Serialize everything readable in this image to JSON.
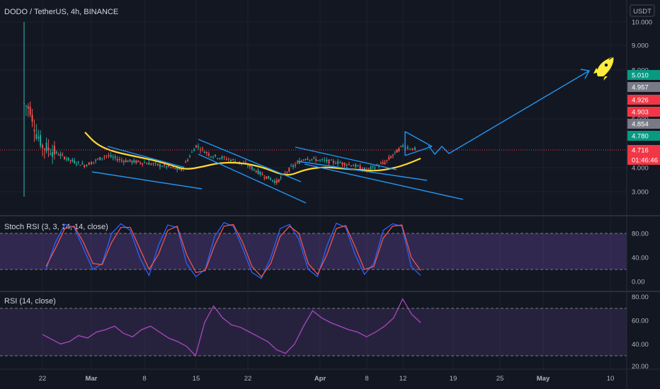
{
  "symbol": {
    "title": "DODO / TetherUS, 4h, BINANCE",
    "currency": "USDT"
  },
  "chart_data": [
    {
      "type": "candlestick",
      "panel": "price",
      "title": "DODO / TetherUS, 4h, BINANCE",
      "y_ticks": [
        "10.000",
        "9.000",
        "8.000",
        "6.000",
        "4.000",
        "3.000"
      ],
      "x_ticks": [
        "22",
        "Mar",
        "8",
        "15",
        "22",
        "Apr",
        "8",
        "12",
        "19",
        "25",
        "May",
        "10"
      ],
      "grid": true,
      "approx_close_series": [
        {
          "date": "Feb 19",
          "close": 6.6
        },
        {
          "date": "Feb 20",
          "close": 6.4
        },
        {
          "date": "Feb 21",
          "close": 5.4
        },
        {
          "date": "Feb 22",
          "close": 4.9
        },
        {
          "date": "Feb 24",
          "close": 4.6
        },
        {
          "date": "Feb 26",
          "close": 4.3
        },
        {
          "date": "Feb 28",
          "close": 4.1
        },
        {
          "date": "Mar 1",
          "close": 4.2
        },
        {
          "date": "Mar 3",
          "close": 4.5
        },
        {
          "date": "Mar 5",
          "close": 4.3
        },
        {
          "date": "Mar 8",
          "close": 4.2
        },
        {
          "date": "Mar 11",
          "close": 4.05
        },
        {
          "date": "Mar 13",
          "close": 3.9
        },
        {
          "date": "Mar 15",
          "close": 4.9
        },
        {
          "date": "Mar 17",
          "close": 4.5
        },
        {
          "date": "Mar 20",
          "close": 4.3
        },
        {
          "date": "Mar 22",
          "close": 4.1
        },
        {
          "date": "Mar 24",
          "close": 3.7
        },
        {
          "date": "Mar 26",
          "close": 3.4
        },
        {
          "date": "Mar 28",
          "close": 4.0
        },
        {
          "date": "Mar 30",
          "close": 4.4
        },
        {
          "date": "Apr 1",
          "close": 4.3
        },
        {
          "date": "Apr 4",
          "close": 4.2
        },
        {
          "date": "Apr 6",
          "close": 4.1
        },
        {
          "date": "Apr 8",
          "close": 3.9
        },
        {
          "date": "Apr 10",
          "close": 4.2
        },
        {
          "date": "Apr 12",
          "close": 4.9
        },
        {
          "date": "Apr 13",
          "close": 4.8
        },
        {
          "date": "Apr 14",
          "close": 4.72
        }
      ],
      "price_tags": [
        {
          "value": "5.010",
          "color": "#089981"
        },
        {
          "value": "4.957",
          "color": "#787b86"
        },
        {
          "value": "4.926",
          "color": "#f23645"
        },
        {
          "value": "4.903",
          "color": "#f23645"
        },
        {
          "value": "4.854",
          "color": "#787b86"
        },
        {
          "value": "4.780",
          "color": "#089981"
        },
        {
          "value": "4.716",
          "color": "#f23645"
        },
        {
          "value": "01:46:46",
          "color": "#f23645"
        }
      ],
      "colors": {
        "up": "#26a69a",
        "down": "#ef5350",
        "moving_average": "#fdd835",
        "drawings": "#2196f3",
        "last_price_line": "#f23645"
      }
    },
    {
      "type": "line",
      "panel": "stoch_rsi",
      "title": "Stoch RSI (3, 3, 14, 14, close)",
      "ylim": [
        0,
        100
      ],
      "y_ticks": [
        "80.00",
        "40.00",
        "0.00"
      ],
      "bands": [
        20,
        80
      ],
      "series": [
        {
          "color": "#2962ff",
          "values": [
            20,
            65,
            95,
            90,
            55,
            20,
            30,
            80,
            96,
            85,
            40,
            10,
            60,
            94,
            90,
            30,
            8,
            20,
            75,
            98,
            92,
            55,
            15,
            5,
            40,
            88,
            95,
            70,
            20,
            8,
            60,
            97,
            90,
            45,
            12,
            30,
            85,
            96,
            92,
            25,
            10
          ]
        },
        {
          "color": "#ef5350",
          "values": [
            25,
            55,
            88,
            92,
            65,
            30,
            28,
            65,
            90,
            90,
            55,
            20,
            45,
            85,
            92,
            45,
            15,
            18,
            60,
            92,
            95,
            65,
            25,
            8,
            30,
            75,
            92,
            80,
            30,
            12,
            45,
            88,
            93,
            58,
            20,
            25,
            72,
            92,
            94,
            40,
            18
          ]
        }
      ]
    },
    {
      "type": "line",
      "panel": "rsi",
      "title": "RSI (14, close)",
      "ylim": [
        20,
        80
      ],
      "y_ticks": [
        "80.00",
        "60.00",
        "40.00",
        "20.00"
      ],
      "bands": [
        30,
        70
      ],
      "series": [
        {
          "color": "#7e57c2",
          "values": [
            48,
            44,
            40,
            42,
            47,
            45,
            50,
            52,
            55,
            49,
            46,
            52,
            55,
            50,
            45,
            42,
            38,
            30,
            58,
            72,
            62,
            56,
            54,
            50,
            46,
            42,
            35,
            32,
            40,
            55,
            68,
            62,
            58,
            55,
            52,
            50,
            46,
            50,
            55,
            62,
            78,
            65,
            58
          ]
        }
      ]
    }
  ],
  "time_axis": [
    "22",
    "Mar",
    "8",
    "15",
    "22",
    "Apr",
    "8",
    "12",
    "19",
    "25",
    "May",
    "10"
  ]
}
